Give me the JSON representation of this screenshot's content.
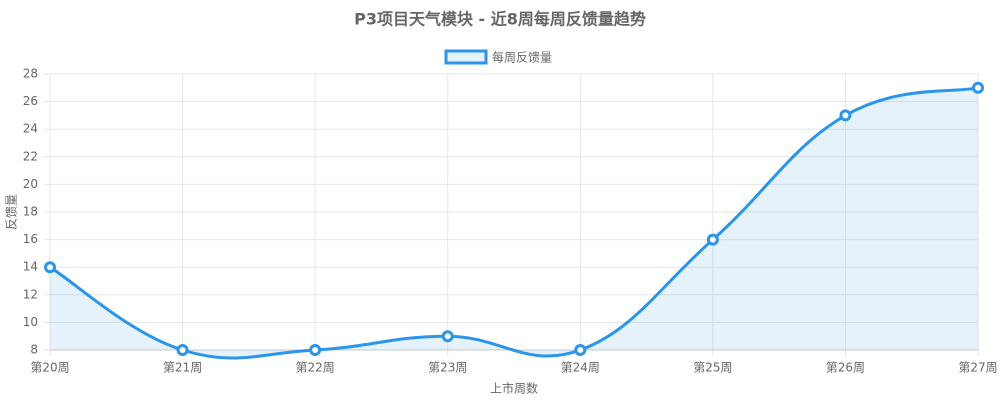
{
  "chart_data": {
    "type": "line",
    "title": "P3项目天气模块 - 近8周每周反馈量趋势",
    "x_label": "上市周数",
    "y_label": "反馈量",
    "categories": [
      "第20周",
      "第21周",
      "第22周",
      "第23周",
      "第24周",
      "第25周",
      "第26周",
      "第27周"
    ],
    "series": [
      {
        "name": "每周反馈量",
        "color": "#2b95e9",
        "values": [
          14,
          8,
          8,
          9,
          8,
          16,
          25,
          27
        ]
      }
    ],
    "ylim": [
      8,
      28
    ],
    "yticks": [
      8,
      10,
      12,
      14,
      16,
      18,
      20,
      22,
      24,
      26,
      28
    ],
    "grid": true,
    "fill": true,
    "legend": "top"
  }
}
